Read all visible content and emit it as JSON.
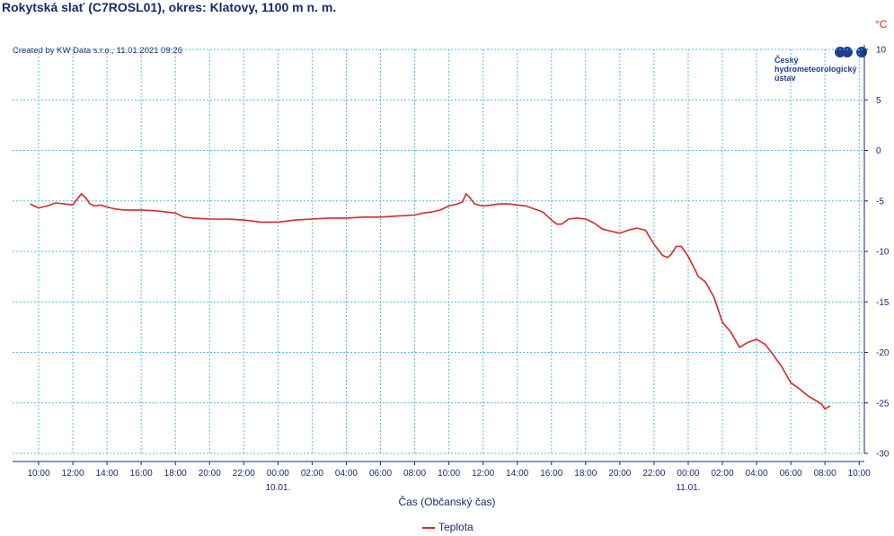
{
  "title": "Rokytská slať (C7ROSL01), okres: Klatovy, 1100 m n. m.",
  "unit": "°C",
  "created": "Created by KW Data s.r.o., 11.01.2021 09:26",
  "logo": {
    "line1": "Český",
    "line2": "hydrometeorologický",
    "line3": "ústav"
  },
  "colors": {
    "series": "#d42a2a",
    "grid": "#5bb8e0",
    "text": "#1a2a6c",
    "logo": "#1c3f8f"
  },
  "chart_data": {
    "type": "line",
    "xlabel": "Čas (Občanský čas)",
    "ylabel": "°C",
    "ylim": [
      -30,
      10
    ],
    "grid": true,
    "legend_position": "bottom",
    "y_ticks": [
      10,
      5,
      0,
      -5,
      -10,
      -15,
      -20,
      -25,
      -30
    ],
    "x_ticks": [
      "10:00",
      "12:00",
      "14:00",
      "16:00",
      "18:00",
      "20:00",
      "22:00",
      "00:00",
      "02:00",
      "04:00",
      "06:00",
      "08:00",
      "10:00",
      "12:00",
      "14:00",
      "16:00",
      "18:00",
      "20:00",
      "22:00",
      "00:00",
      "02:00",
      "04:00",
      "06:00",
      "08:00",
      "10:00"
    ],
    "date_labels": [
      {
        "tick": "00:00",
        "index": 7,
        "label": "10.01."
      },
      {
        "tick": "00:00",
        "index": 19,
        "label": "11.01."
      }
    ],
    "xlim_hours": [
      8.7,
      57.3
    ],
    "x_note": "x values are hours from 09.01. 00:00",
    "series": [
      {
        "name": "Teplota",
        "x": [
          9.5,
          10.0,
          10.5,
          11.0,
          11.5,
          12.0,
          12.5,
          12.8,
          13.0,
          13.3,
          13.6,
          14.0,
          14.5,
          15.0,
          15.5,
          16.0,
          17.0,
          18.0,
          18.5,
          19.0,
          20.0,
          21.0,
          22.0,
          23.0,
          23.5,
          24.0,
          24.5,
          25.0,
          26.0,
          27.0,
          28.0,
          29.0,
          30.0,
          31.0,
          32.0,
          32.5,
          33.0,
          33.5,
          34.0,
          34.5,
          34.8,
          35.0,
          35.2,
          35.5,
          36.0,
          36.5,
          37.0,
          37.5,
          38.0,
          38.5,
          39.0,
          39.5,
          40.0,
          40.3,
          40.6,
          41.0,
          41.5,
          42.0,
          42.5,
          43.0,
          43.5,
          44.0,
          44.5,
          45.0,
          45.5,
          46.0,
          46.5,
          46.8,
          47.0,
          47.3,
          47.6,
          48.0,
          48.3,
          48.6,
          49.0,
          49.5,
          50.0,
          50.5,
          51.0,
          51.5,
          52.0,
          52.5,
          53.0,
          53.5,
          54.0,
          54.5,
          55.0,
          55.5,
          55.8,
          56.0,
          56.3
        ],
        "y": [
          -5.3,
          -5.7,
          -5.5,
          -5.2,
          -5.3,
          -5.4,
          -4.3,
          -4.8,
          -5.3,
          -5.5,
          -5.4,
          -5.6,
          -5.8,
          -5.9,
          -5.9,
          -5.9,
          -6.0,
          -6.2,
          -6.6,
          -6.7,
          -6.8,
          -6.8,
          -6.9,
          -7.1,
          -7.1,
          -7.1,
          -7.0,
          -6.9,
          -6.8,
          -6.7,
          -6.7,
          -6.6,
          -6.6,
          -6.5,
          -6.4,
          -6.2,
          -6.1,
          -5.9,
          -5.5,
          -5.3,
          -5.1,
          -4.3,
          -4.6,
          -5.3,
          -5.5,
          -5.4,
          -5.3,
          -5.3,
          -5.4,
          -5.5,
          -5.8,
          -6.1,
          -6.9,
          -7.3,
          -7.3,
          -6.8,
          -6.7,
          -6.8,
          -7.2,
          -7.8,
          -8.0,
          -8.2,
          -7.9,
          -7.7,
          -7.9,
          -9.3,
          -10.4,
          -10.6,
          -10.3,
          -9.5,
          -9.5,
          -10.5,
          -11.5,
          -12.5,
          -13.0,
          -14.5,
          -17.0,
          -18.0,
          -19.5,
          -19.0,
          -18.7,
          -19.2,
          -20.3,
          -21.5,
          -23.0,
          -23.6,
          -24.3,
          -24.8,
          -25.1,
          -25.6,
          -25.3
        ]
      }
    ]
  }
}
